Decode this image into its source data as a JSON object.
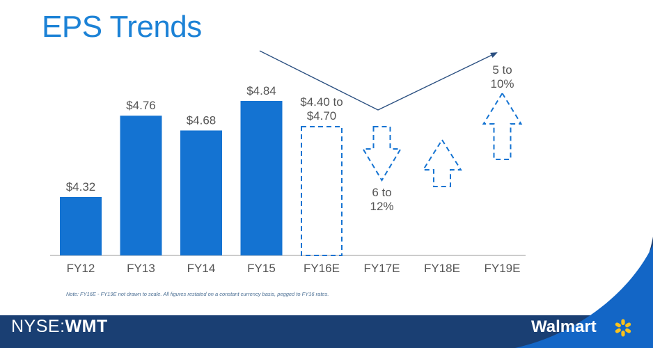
{
  "slide": {
    "title": "EPS Trends",
    "note": "Note: FY16E - FY19E not drawn to scale. All figures restated on a constant currency basis, pegged to FY16 rates.",
    "ticker_prefix": "NYSE:",
    "ticker_symbol": "WMT",
    "brand_name": "Walmart",
    "spark_icon": "walmart-spark-icon"
  },
  "colors": {
    "accent": "#1c82d6",
    "bar": "#1473d2",
    "footer_navy": "#1a3f73",
    "footer_blue": "#1366c6",
    "spark": "#fbc21c",
    "label": "#555555"
  },
  "chart_data": {
    "type": "bar",
    "categories": [
      "FY12",
      "FY13",
      "FY14",
      "FY15",
      "FY16E",
      "FY17E",
      "FY18E",
      "FY19E"
    ],
    "values": [
      4.32,
      4.76,
      4.68,
      4.84,
      null,
      null,
      null,
      null
    ],
    "value_labels": [
      "$4.32",
      "$4.76",
      "$4.68",
      "$4.84",
      "",
      "",
      "",
      ""
    ],
    "estimates": [
      {
        "category": "FY16E",
        "shape": "dashed-range-box",
        "low": 4.4,
        "high": 4.7,
        "label_lines": [
          "$4.40 to",
          "$4.70"
        ]
      },
      {
        "category": "FY17E",
        "shape": "dashed-down-arrow",
        "label_lines": [
          "6 to",
          "12%"
        ]
      },
      {
        "category": "FY18E",
        "shape": "dashed-up-arrow",
        "label_lines": []
      },
      {
        "category": "FY19E",
        "shape": "dashed-up-arrow",
        "label_lines": [
          "5 to",
          "10%"
        ]
      }
    ],
    "trend_line": "down-then-up arrow above FY16E to FY19E",
    "title": "EPS Trends",
    "xlabel": "",
    "ylabel": "",
    "grid": false
  }
}
